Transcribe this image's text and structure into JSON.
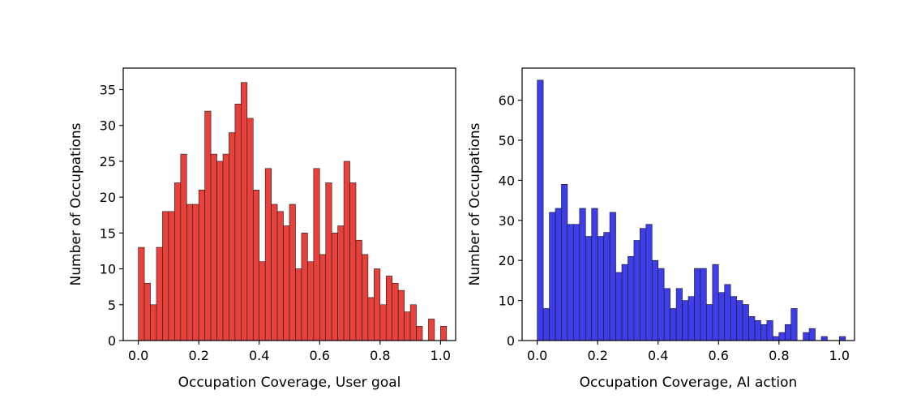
{
  "chart_data": [
    {
      "type": "bar",
      "title": "",
      "xlabel": "Occupation Coverage, User goal",
      "ylabel": "Number of Occupations",
      "bin_width": 0.02,
      "bin_start": 0.0,
      "xlim": [
        -0.05,
        1.05
      ],
      "ylim": [
        0,
        38
      ],
      "xticks": [
        0.0,
        0.2,
        0.4,
        0.6,
        0.8,
        1.0
      ],
      "xtick_labels": [
        "0.0",
        "0.2",
        "0.4",
        "0.6",
        "0.8",
        "1.0"
      ],
      "yticks": [
        0,
        5,
        10,
        15,
        20,
        25,
        30,
        35
      ],
      "ytick_labels": [
        "0",
        "5",
        "10",
        "15",
        "20",
        "25",
        "30",
        "35"
      ],
      "color": "#e8413c",
      "values": [
        13,
        8,
        5,
        13,
        18,
        18,
        22,
        26,
        19,
        19,
        21,
        32,
        26,
        25,
        26,
        29,
        33,
        36,
        31,
        21,
        11,
        24,
        19,
        18,
        16,
        19,
        10,
        15,
        11,
        24,
        12,
        22,
        15,
        16,
        25,
        22,
        14,
        12,
        6,
        10,
        5,
        9,
        8,
        7,
        4,
        5,
        2,
        0,
        3,
        0,
        2
      ]
    },
    {
      "type": "bar",
      "title": "",
      "xlabel": "Occupation Coverage, AI action",
      "ylabel": "Number of Occupations",
      "bin_width": 0.02,
      "bin_start": 0.0,
      "xlim": [
        -0.05,
        1.05
      ],
      "ylim": [
        0,
        68
      ],
      "xticks": [
        0.0,
        0.2,
        0.4,
        0.6,
        0.8,
        1.0
      ],
      "xtick_labels": [
        "0.0",
        "0.2",
        "0.4",
        "0.6",
        "0.8",
        "1.0"
      ],
      "yticks": [
        0,
        10,
        20,
        30,
        40,
        50,
        60
      ],
      "ytick_labels": [
        "0",
        "10",
        "20",
        "30",
        "40",
        "50",
        "60"
      ],
      "color": "#3d3dea",
      "values": [
        65,
        8,
        32,
        33,
        39,
        29,
        29,
        33,
        26,
        33,
        26,
        27,
        32,
        17,
        19,
        21,
        25,
        28,
        29,
        20,
        18,
        13,
        8,
        13,
        10,
        11,
        18,
        18,
        9,
        19,
        12,
        14,
        11,
        10,
        9,
        6,
        5,
        4,
        5,
        1,
        2,
        4,
        8,
        0,
        2,
        3,
        0,
        1,
        0,
        0,
        1
      ]
    }
  ]
}
